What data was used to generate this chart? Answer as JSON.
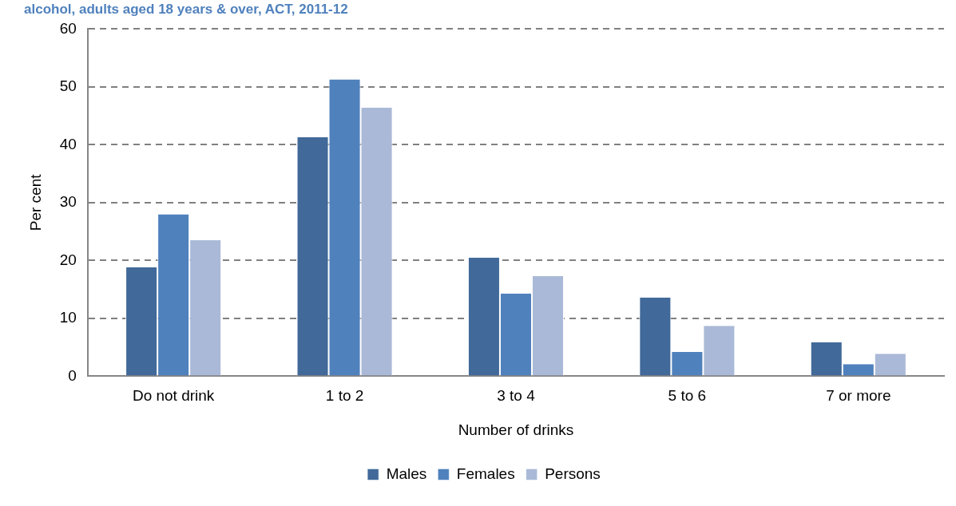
{
  "chart_data": {
    "type": "bar",
    "title": "alcohol, adults aged 18 years & over, ACT, 2011-12",
    "xlabel": "Number of drinks",
    "ylabel": "Per cent",
    "categories": [
      "Do not drink",
      "1 to 2",
      "3 to 4",
      "5 to 6",
      "7 or more"
    ],
    "series": [
      {
        "name": "Males",
        "color": "#416999",
        "values": [
          18.8,
          41.3,
          20.5,
          13.6,
          5.9
        ]
      },
      {
        "name": "Females",
        "color": "#4f81bd",
        "values": [
          28.0,
          51.3,
          14.3,
          4.2,
          2.1
        ]
      },
      {
        "name": "Persons",
        "color": "#aab9d7",
        "values": [
          23.5,
          46.4,
          17.3,
          8.7,
          3.9
        ]
      }
    ],
    "ylim": [
      0,
      60
    ],
    "yticks": [
      0,
      10,
      20,
      30,
      40,
      50,
      60
    ],
    "grid": "y",
    "legend": "bottom"
  }
}
